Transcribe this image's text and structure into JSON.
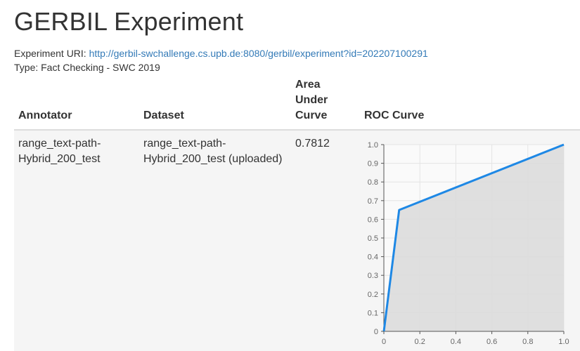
{
  "page": {
    "title": "GERBIL Experiment",
    "uri_label": "Experiment URI:",
    "uri_link": "http://gerbil-swchallenge.cs.upb.de:8080/gerbil/experiment?id=202207100291",
    "type_line": "Type: Fact Checking - SWC 2019"
  },
  "table": {
    "headers": {
      "annotator": "Annotator",
      "dataset": "Dataset",
      "auc_line1": "Area Under",
      "auc_line2": "Curve",
      "roc": "ROC Curve"
    },
    "rows": [
      {
        "annotator": "range_text-path-Hybrid_200_test",
        "dataset": "range_text-path-Hybrid_200_test (uploaded)",
        "auc": "0.7812"
      }
    ]
  },
  "chart_data": {
    "type": "area",
    "x": [
      0,
      0.085,
      1.0
    ],
    "series": [
      {
        "values": [
          0,
          0.65,
          1.0
        ],
        "color": "#1e88e5"
      }
    ],
    "fill_color": "#dcdcdc",
    "xlim": [
      0,
      1
    ],
    "ylim": [
      0,
      1
    ],
    "xticks": [
      "0",
      "0.2",
      "0.4",
      "0.6",
      "0.8",
      "1.0"
    ],
    "yticks": [
      "0",
      "0.1",
      "0.2",
      "0.3",
      "0.4",
      "0.5",
      "0.6",
      "0.7",
      "0.8",
      "0.9",
      "1.0"
    ],
    "grid": true
  }
}
